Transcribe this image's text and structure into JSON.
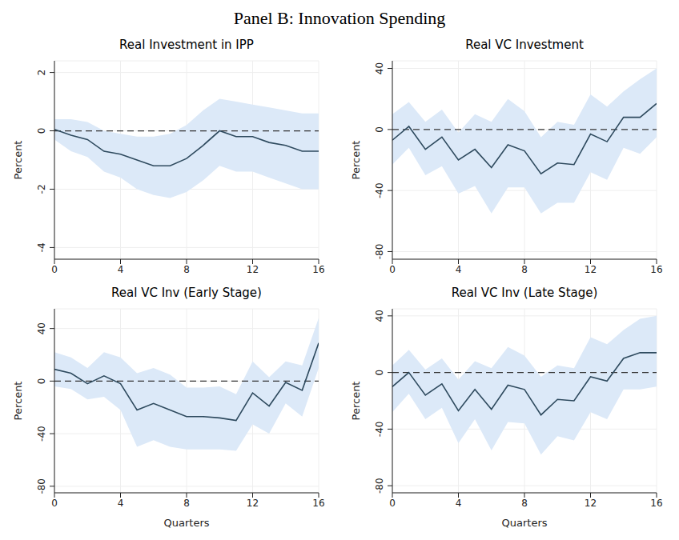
{
  "title": "Panel B: Innovation Spending",
  "chart_data": [
    {
      "type": "line",
      "title": "Real Investment in IPP",
      "y_label": "Percent",
      "x": [
        0,
        1,
        2,
        3,
        4,
        5,
        6,
        7,
        8,
        9,
        10,
        11,
        12,
        13,
        14,
        15,
        16
      ],
      "xlim": [
        0,
        16
      ],
      "xticks": [
        0,
        4,
        8,
        12,
        16
      ],
      "ylim": [
        -4.4,
        2.4
      ],
      "yticks": [
        -4,
        -2,
        0,
        2
      ],
      "grid": true,
      "reference_line": 0,
      "series": [
        {
          "color": "#2e4a5e",
          "values": [
            0.05,
            -0.15,
            -0.3,
            -0.7,
            -0.8,
            -1.0,
            -1.2,
            -1.2,
            -0.95,
            -0.5,
            0,
            -0.2,
            -0.2,
            -0.4,
            -0.5,
            -0.7,
            -0.7
          ],
          "lower": [
            -0.3,
            -0.7,
            -0.9,
            -1.4,
            -1.6,
            -2.0,
            -2.2,
            -2.3,
            -2.1,
            -1.7,
            -1.2,
            -1.4,
            -1.4,
            -1.6,
            -1.8,
            -2.0,
            -2.0
          ],
          "upper": [
            0.4,
            0.4,
            0.3,
            0,
            -0.1,
            -0.2,
            -0.2,
            -0.1,
            0.2,
            0.7,
            1.1,
            1.0,
            0.9,
            0.8,
            0.7,
            0.6,
            0.6
          ]
        }
      ]
    },
    {
      "type": "line",
      "title": "Real VC Investment",
      "y_label": "Percent",
      "x": [
        0,
        1,
        2,
        3,
        4,
        5,
        6,
        7,
        8,
        9,
        10,
        11,
        12,
        13,
        14,
        15,
        16
      ],
      "xlim": [
        0,
        16
      ],
      "xticks": [
        0,
        4,
        8,
        12,
        16
      ],
      "ylim": [
        -85,
        45
      ],
      "yticks": [
        -80,
        -40,
        0,
        40
      ],
      "grid": true,
      "reference_line": 0,
      "series": [
        {
          "color": "#2e4a5e",
          "values": [
            -7,
            2,
            -13,
            -5,
            -20,
            -13,
            -25,
            -10,
            -14,
            -29,
            -22,
            -23,
            -3,
            -8,
            8,
            8,
            17
          ],
          "lower": [
            -23,
            -12,
            -30,
            -24,
            -42,
            -37,
            -55,
            -38,
            -38,
            -55,
            -48,
            -48,
            -28,
            -33,
            -12,
            -16,
            -5
          ],
          "upper": [
            10,
            18,
            5,
            13,
            -2,
            10,
            5,
            20,
            12,
            -5,
            5,
            3,
            23,
            15,
            25,
            33,
            40
          ]
        }
      ]
    },
    {
      "type": "line",
      "title": "Real VC Inv (Early Stage)",
      "y_label": "Percent",
      "x_label": "Quarters",
      "x": [
        0,
        1,
        2,
        3,
        4,
        5,
        6,
        7,
        8,
        9,
        10,
        11,
        12,
        13,
        14,
        15,
        16
      ],
      "xlim": [
        0,
        16
      ],
      "xticks": [
        0,
        4,
        8,
        12,
        16
      ],
      "ylim": [
        -85,
        55
      ],
      "yticks": [
        -80,
        -40,
        0,
        40
      ],
      "grid": true,
      "reference_line": 0,
      "series": [
        {
          "color": "#2e4a5e",
          "values": [
            9,
            6,
            -2,
            4,
            -2,
            -22,
            -17,
            -22,
            -27,
            -27,
            -28,
            -30,
            -9,
            -19,
            -1,
            -7,
            29
          ],
          "lower": [
            -4,
            -6,
            -14,
            -12,
            -22,
            -50,
            -45,
            -50,
            -52,
            -52,
            -52,
            -53,
            -33,
            -40,
            -17,
            -27,
            10
          ],
          "upper": [
            22,
            18,
            10,
            22,
            18,
            6,
            10,
            5,
            -5,
            -5,
            -4,
            -10,
            15,
            3,
            15,
            12,
            48
          ]
        }
      ]
    },
    {
      "type": "line",
      "title": "Real VC Inv (Late Stage)",
      "y_label": "Percent",
      "x_label": "Quarters",
      "x": [
        0,
        1,
        2,
        3,
        4,
        5,
        6,
        7,
        8,
        9,
        10,
        11,
        12,
        13,
        14,
        15,
        16
      ],
      "xlim": [
        0,
        16
      ],
      "xticks": [
        0,
        4,
        8,
        12,
        16
      ],
      "ylim": [
        -85,
        45
      ],
      "yticks": [
        -80,
        -40,
        0,
        40
      ],
      "grid": true,
      "reference_line": 0,
      "series": [
        {
          "color": "#2e4a5e",
          "values": [
            -10,
            0,
            -16,
            -8,
            -27,
            -12,
            -26,
            -9,
            -12,
            -30,
            -19,
            -20,
            -3,
            -6,
            10,
            14,
            14
          ],
          "lower": [
            -28,
            -15,
            -33,
            -25,
            -50,
            -33,
            -55,
            -35,
            -36,
            -58,
            -45,
            -48,
            -28,
            -33,
            -12,
            -12,
            -10
          ],
          "upper": [
            5,
            16,
            2,
            10,
            -5,
            8,
            3,
            18,
            12,
            -3,
            5,
            3,
            25,
            20,
            30,
            38,
            40
          ]
        }
      ]
    }
  ]
}
